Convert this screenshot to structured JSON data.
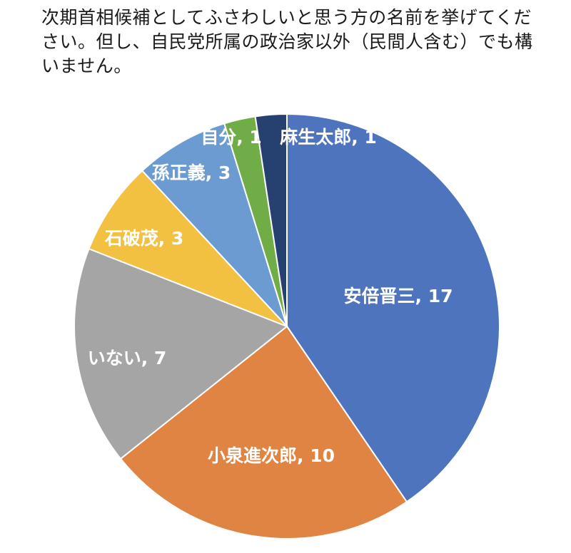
{
  "chart_data": {
    "type": "pie",
    "title": "次期首相候補としてふさわしいと思う方の名前を挙げてください。但し、自民党所属の政治家以外（民間人含む）でも構いません。",
    "slices": [
      {
        "label": "安倍晋三",
        "value": 17,
        "color": "#4e74bd",
        "text": "安倍晋三, 17"
      },
      {
        "label": "小泉進次郎",
        "value": 10,
        "color": "#e08443",
        "text": "小泉進次郎, 10"
      },
      {
        "label": "いない",
        "value": 7,
        "color": "#a5a5a5",
        "text": "いない, 7"
      },
      {
        "label": "石破茂",
        "value": 3,
        "color": "#f2c142",
        "text": "石破茂, 3"
      },
      {
        "label": "孫正義",
        "value": 3,
        "color": "#6b9bd1",
        "text": "孫正義, 3"
      },
      {
        "label": "自分",
        "value": 1,
        "color": "#70ad47",
        "text": "自分, 1"
      },
      {
        "label": "麻生太郎",
        "value": 1,
        "color": "#26406f",
        "text": "麻生太郎, 1"
      }
    ]
  }
}
